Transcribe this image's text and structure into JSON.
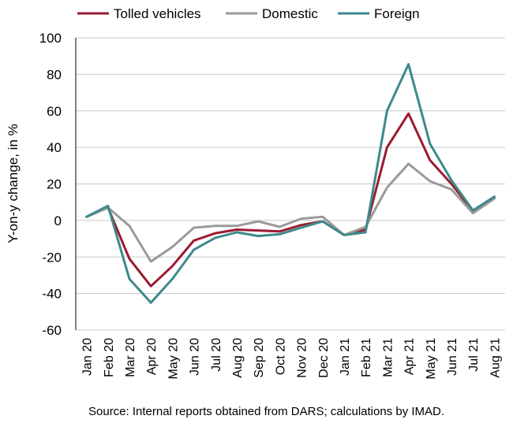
{
  "chart_data": {
    "type": "line",
    "title": "",
    "xlabel": "",
    "ylabel": "Y-on-y change, in %",
    "ylim": [
      -60,
      100
    ],
    "yticks": [
      -60,
      -40,
      -20,
      0,
      20,
      40,
      60,
      80,
      100
    ],
    "grid": true,
    "legend_position": "top",
    "categories": [
      "Jan 20",
      "Feb 20",
      "Mar 20",
      "Apr 20",
      "May 20",
      "Jun 20",
      "Jul 20",
      "Aug 20",
      "Sep 20",
      "Oct 20",
      "Nov 20",
      "Dec 20",
      "Jan 21",
      "Feb 21",
      "Mar 21",
      "Apr 21",
      "May 21",
      "Jun 21",
      "Jul 21",
      "Aug 21"
    ],
    "series": [
      {
        "name": "Tolled vehicles",
        "color": "#9b1b30",
        "values": [
          2,
          7,
          -21,
          -36,
          -25,
          -11,
          -7,
          -5,
          -5.5,
          -6,
          -2.5,
          -0.5,
          -8,
          -5,
          40,
          58.5,
          33,
          20,
          5,
          12.5
        ]
      },
      {
        "name": "Domestic",
        "color": "#9a9a9a",
        "values": [
          2,
          7,
          -3,
          -22.5,
          -14.5,
          -4,
          -3,
          -3,
          -0.5,
          -3.5,
          1,
          2,
          -8,
          -3.5,
          18,
          31,
          21.5,
          17,
          4,
          12
        ]
      },
      {
        "name": "Foreign",
        "color": "#3d8a8c",
        "values": [
          2,
          8,
          -32,
          -45,
          -32,
          -16,
          -9.5,
          -6.5,
          -8.5,
          -7.5,
          -4,
          -0.5,
          -8,
          -6.5,
          60,
          85.5,
          42,
          22,
          5.5,
          13
        ]
      }
    ],
    "source": "Source: Internal reports obtained from DARS; calculations by IMAD."
  }
}
